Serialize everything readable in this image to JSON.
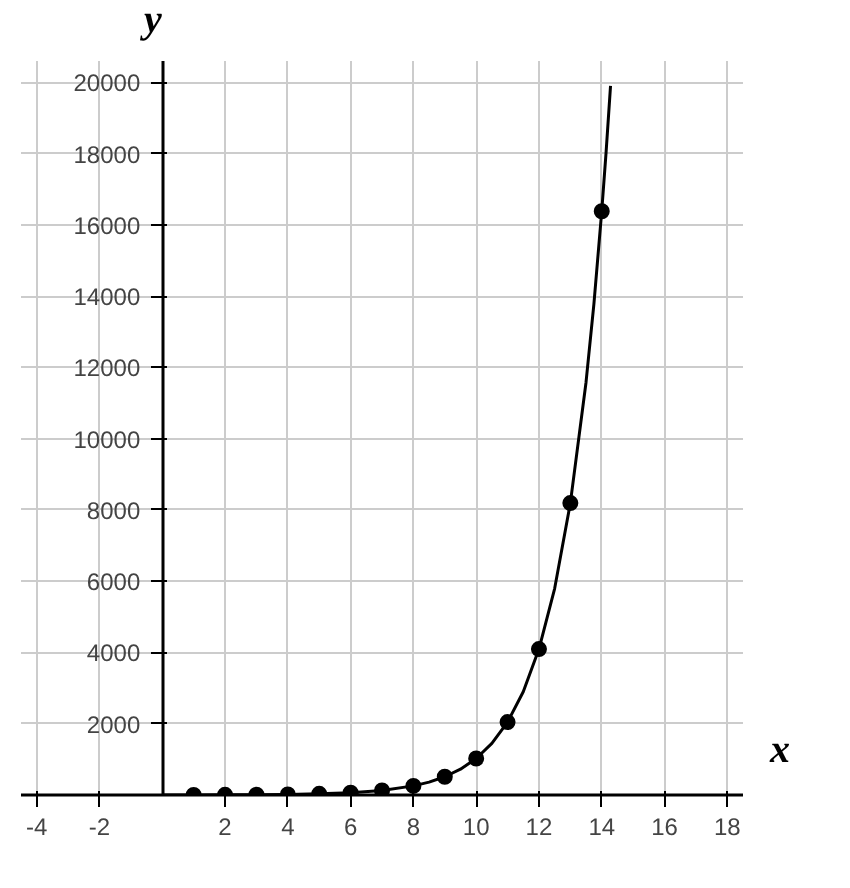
{
  "chart_data": {
    "type": "scatter",
    "xlabel": "x",
    "ylabel": "y",
    "xlim": [
      -4.5,
      18.5
    ],
    "ylim": [
      0,
      20600
    ],
    "xticks": [
      -4,
      -2,
      2,
      4,
      6,
      8,
      10,
      12,
      14,
      16,
      18
    ],
    "yticks": [
      2000,
      4000,
      6000,
      8000,
      10000,
      12000,
      14000,
      16000,
      18000,
      20000
    ],
    "grid": true,
    "series": [
      {
        "type": "line",
        "color": "#000000",
        "line_style": "solid",
        "x": [
          0,
          1,
          2,
          3,
          4,
          5,
          6,
          7,
          8,
          8.5,
          9,
          9.5,
          10,
          10.5,
          11,
          11.5,
          12,
          12.5,
          13,
          13.5,
          13.75,
          14,
          14.14,
          14.28
        ],
        "values": [
          1,
          2,
          4,
          8,
          16,
          32,
          64,
          128,
          256,
          362,
          512,
          724,
          1024,
          1448,
          2048,
          2896,
          4096,
          5793,
          8192,
          11585,
          13777,
          16384,
          18054,
          19900
        ]
      },
      {
        "color": "#000000",
        "marker": "circle",
        "x": [
          1,
          2,
          3,
          4,
          5,
          6,
          7,
          8,
          9,
          10,
          11,
          12,
          13,
          14
        ],
        "values": [
          2,
          4,
          8,
          16,
          32,
          64,
          128,
          256,
          512,
          1024,
          2048,
          4096,
          8192,
          16384
        ]
      }
    ]
  }
}
